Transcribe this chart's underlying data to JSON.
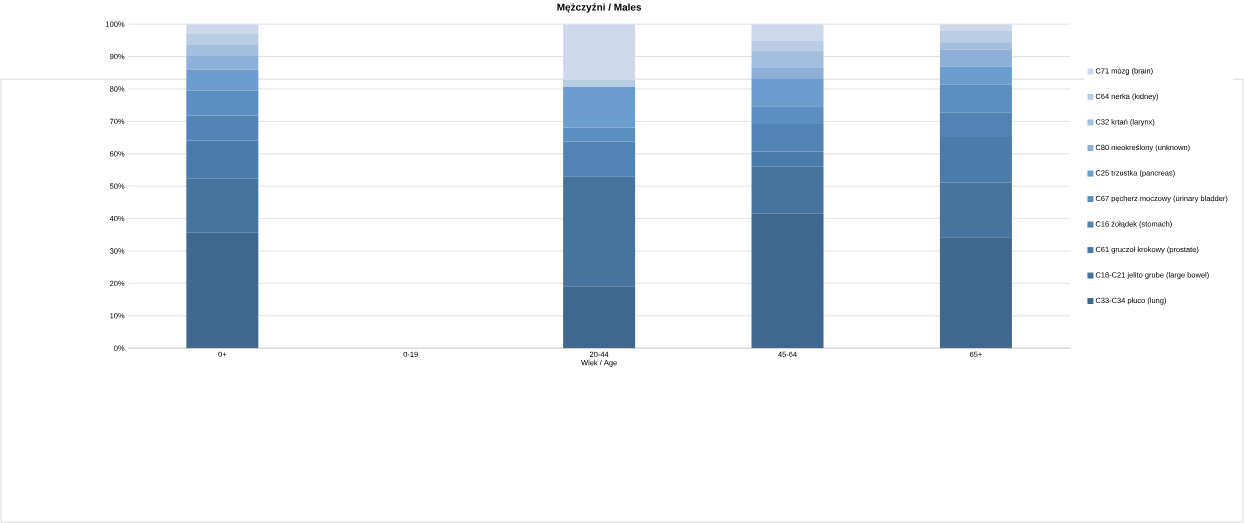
{
  "chart_data": {
    "type": "bar",
    "stacked": true,
    "title": "Mężczyźni / Males",
    "xlabel": "Wiek / Age",
    "categories": [
      "0+",
      "0-19",
      "20-44",
      "45-64",
      "65+"
    ],
    "ylim": [
      0,
      100
    ],
    "yticks": [
      {
        "value": 0,
        "label": "0%"
      },
      {
        "value": 10,
        "label": "10%"
      },
      {
        "value": 20,
        "label": "20%"
      },
      {
        "value": 30,
        "label": "30%"
      },
      {
        "value": 40,
        "label": "40%"
      },
      {
        "value": 50,
        "label": "50%"
      },
      {
        "value": 60,
        "label": "60%"
      },
      {
        "value": 70,
        "label": "70%"
      },
      {
        "value": 80,
        "label": "80%"
      },
      {
        "value": 90,
        "label": "90%"
      },
      {
        "value": 100,
        "label": "100%"
      }
    ],
    "grid": "y",
    "legend": "right",
    "series": [
      {
        "name": "C33-C34 płuco (lung)",
        "color": "#3f6890",
        "values": [
          35.6,
          0,
          19.1,
          41.5,
          34.2
        ]
      },
      {
        "name": "C18-C21 jelito grube (large bowel)",
        "color": "#46749f",
        "values": [
          16.7,
          0,
          33.8,
          14.5,
          16.9
        ]
      },
      {
        "name": "C61 gruczoł krokowy (prostate)",
        "color": "#4a7cab",
        "values": [
          11.8,
          0,
          0,
          4.7,
          14.1
        ]
      },
      {
        "name": "C16 żołądek (stomach)",
        "color": "#5283b5",
        "values": [
          7.7,
          0,
          10.9,
          8.5,
          7.5
        ]
      },
      {
        "name": "C67 pęcherz moczowy (urinary bladder)",
        "color": "#5b8fc1",
        "values": [
          7.7,
          0,
          4.3,
          5.5,
          8.6
        ]
      },
      {
        "name": "C25 trzustka (pancreas)",
        "color": "#6b9dcf",
        "values": [
          6.4,
          0,
          12.5,
          8.4,
          5.6
        ]
      },
      {
        "name": "C80 nieokreślony (unknown)",
        "color": "#8eb0d8",
        "values": [
          4.5,
          0,
          0,
          3.4,
          5.2
        ]
      },
      {
        "name": "C32 krtań (larynx)",
        "color": "#a3bfdf",
        "values": [
          3.2,
          0,
          0,
          5.3,
          2.3
        ]
      },
      {
        "name": "C64 nerka (kidney)",
        "color": "#b8cce4",
        "values": [
          3.4,
          0,
          2.2,
          3.0,
          3.5
        ]
      },
      {
        "name": "C71 mózg (brain)",
        "color": "#cdd9ea",
        "values": [
          3.0,
          0,
          17.2,
          5.2,
          2.1
        ]
      }
    ]
  }
}
